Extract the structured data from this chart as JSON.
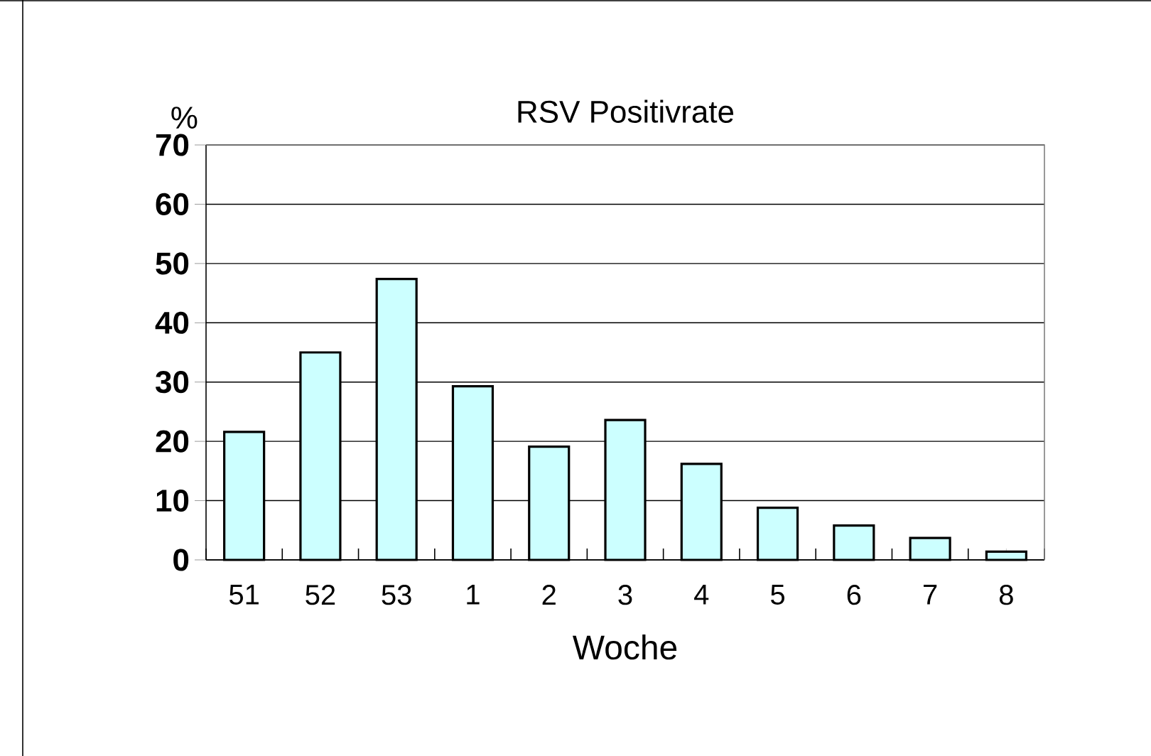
{
  "chart_data": {
    "type": "bar",
    "title": "RSV Positivrate",
    "xlabel": "Woche",
    "ylabel": "%",
    "categories": [
      "51",
      "52",
      "53",
      "1",
      "2",
      "3",
      "4",
      "5",
      "6",
      "7",
      "8"
    ],
    "values": [
      21.6,
      35.0,
      47.4,
      29.3,
      19.1,
      23.6,
      16.2,
      8.8,
      5.8,
      3.7,
      1.4
    ],
    "color": "#ccffff",
    "ylim": [
      0,
      70
    ],
    "yticks": [
      0,
      10,
      20,
      30,
      40,
      50,
      60,
      70
    ],
    "grid": "y"
  }
}
